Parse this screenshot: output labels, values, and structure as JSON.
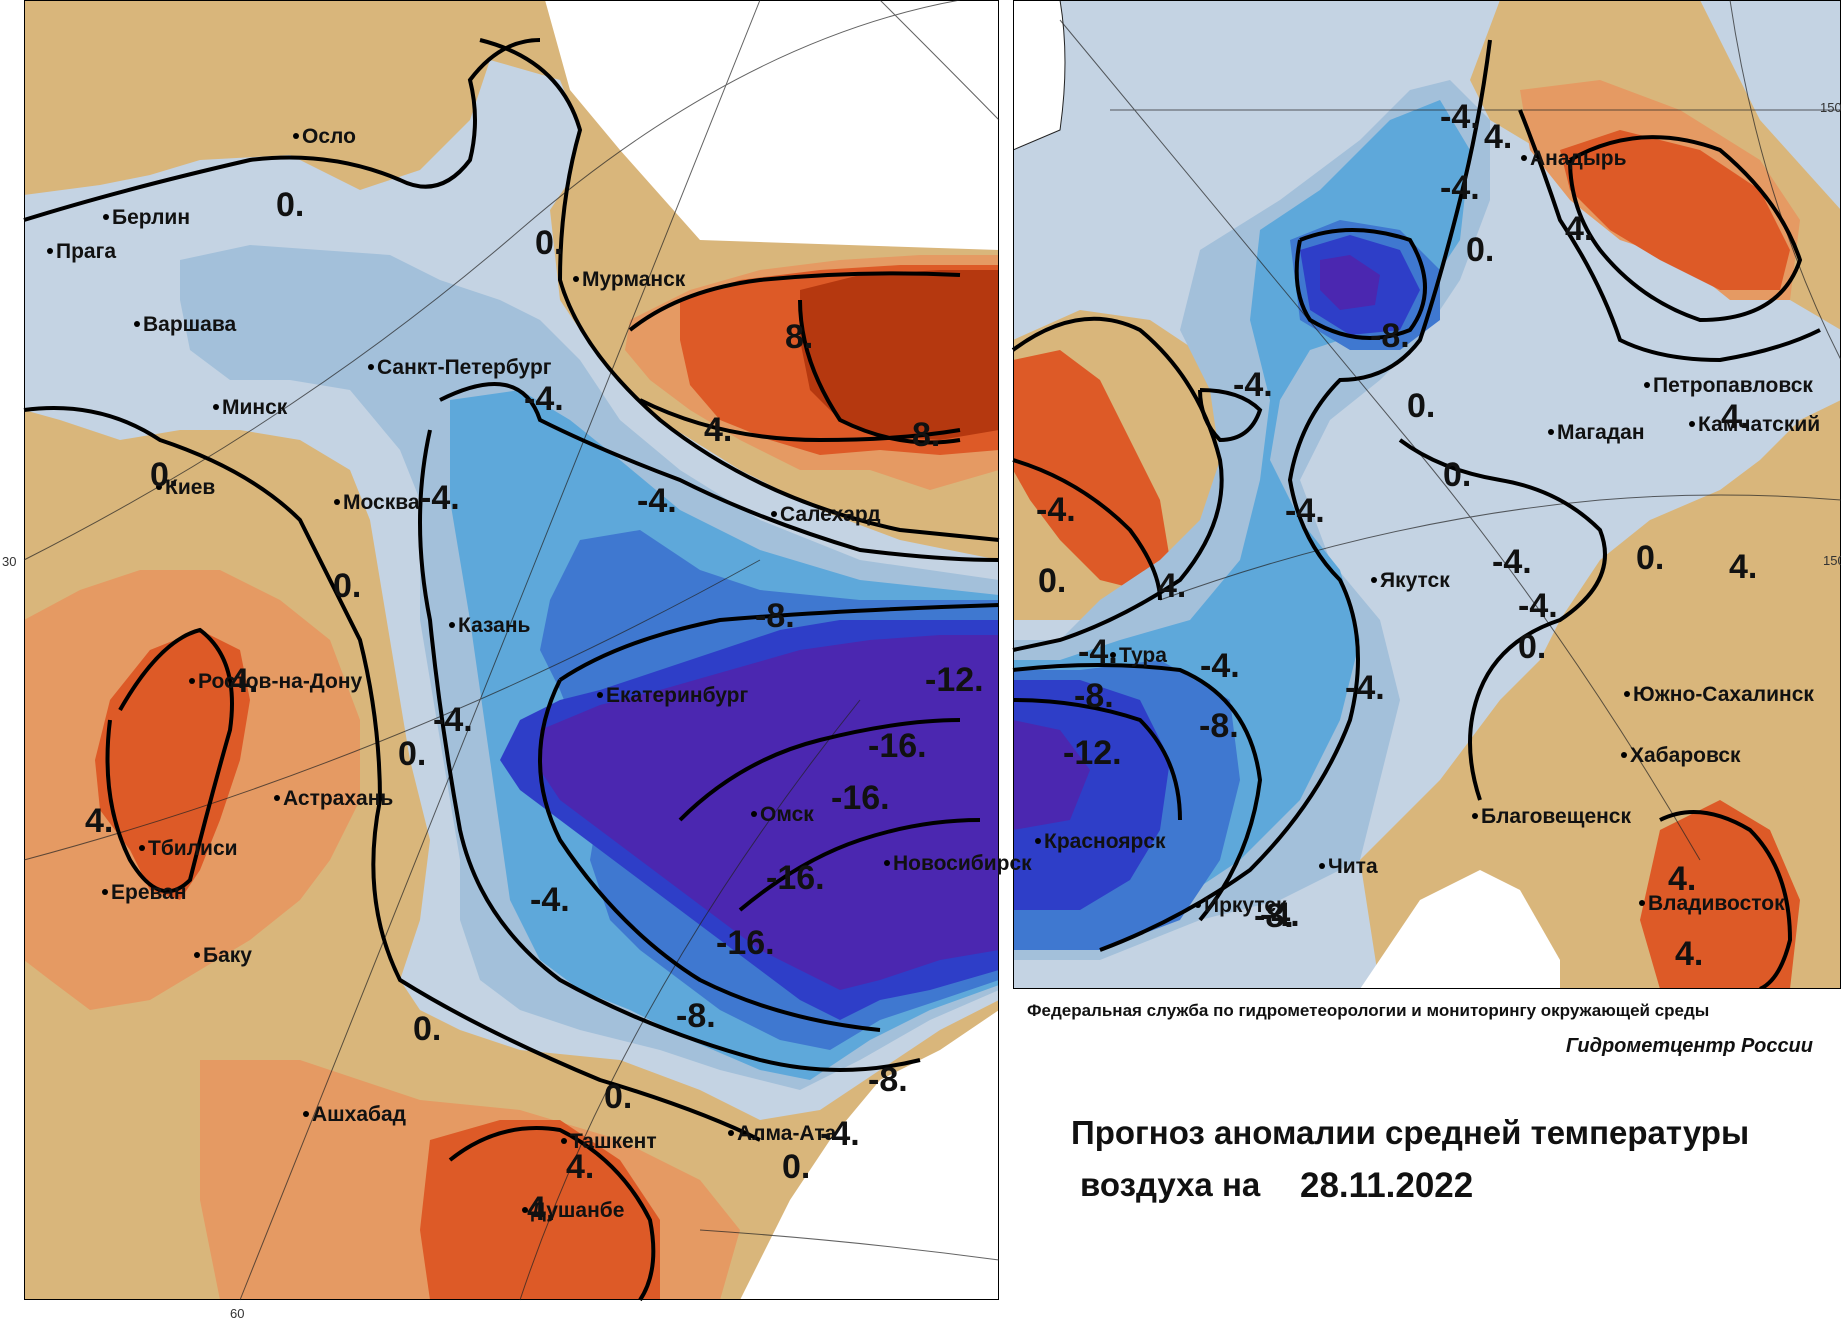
{
  "title": {
    "agency": "Федеральная служба по гидрометеорологии и мониторингу окружающей среды",
    "center": "Гидрометцентр России",
    "line1": "Прогноз аномалии средней температуры",
    "line2": "воздуха на",
    "date": "28.11.2022"
  },
  "legend_colors": {
    "plus8": "#b5380f",
    "plus4": "#dd5a27",
    "plus2": "#e59a63",
    "plus0": "#d9b67b",
    "minus0": "#c4d3e3",
    "minus2": "#a3c0da",
    "minus4": "#5ea8da",
    "minus8": "#3f78d0",
    "minus12": "#2e3ec8",
    "minus16": "#4b27b0"
  },
  "axis_labels": {
    "lat30": "30",
    "lon60": "60",
    "lon150a": "150",
    "lon150b": "150"
  },
  "cities": [
    {
      "id": "oslo",
      "name": "Осло"
    },
    {
      "id": "berlin",
      "name": "Берлин"
    },
    {
      "id": "praga",
      "name": "Прага"
    },
    {
      "id": "varshava",
      "name": "Варшава"
    },
    {
      "id": "minsk",
      "name": "Минск"
    },
    {
      "id": "kiev",
      "name": "Киев"
    },
    {
      "id": "moskva",
      "name": "Москва"
    },
    {
      "id": "spb",
      "name": "Санкт-Петербург"
    },
    {
      "id": "murmansk",
      "name": "Мурманск"
    },
    {
      "id": "salekhard",
      "name": "Салехард"
    },
    {
      "id": "kazan",
      "name": "Казань"
    },
    {
      "id": "rostov",
      "name": "Ростов-на-Дону"
    },
    {
      "id": "astrakhan",
      "name": "Астрахань"
    },
    {
      "id": "tbilisi",
      "name": "Тбилиси"
    },
    {
      "id": "erevan",
      "name": "Ереван"
    },
    {
      "id": "baku",
      "name": "Баку"
    },
    {
      "id": "ekaterinburg",
      "name": "Екатеринбург"
    },
    {
      "id": "omsk",
      "name": "Омск"
    },
    {
      "id": "novosibirsk",
      "name": "Новосибирск"
    },
    {
      "id": "ashkhabad",
      "name": "Ашхабад"
    },
    {
      "id": "tashkent",
      "name": "Ташкент"
    },
    {
      "id": "almaata",
      "name": "Алма-Ата"
    },
    {
      "id": "dushanbe",
      "name": "Душанбе"
    },
    {
      "id": "anadyr",
      "name": "Анадырь"
    },
    {
      "id": "petropavlovsk1",
      "name": "Петропавловск"
    },
    {
      "id": "petropavlovsk2",
      "name": "Камчатский"
    },
    {
      "id": "magadan",
      "name": "Магадан"
    },
    {
      "id": "yakutsk",
      "name": "Якутск"
    },
    {
      "id": "tura",
      "name": "Тура"
    },
    {
      "id": "yuzhno",
      "name": "Южно-Сахалинск"
    },
    {
      "id": "khabarovsk",
      "name": "Хабаровск"
    },
    {
      "id": "blagoveshchensk",
      "name": "Благовещенск"
    },
    {
      "id": "chita",
      "name": "Чита"
    },
    {
      "id": "krasnoyarsk",
      "name": "Красноярск"
    },
    {
      "id": "irkutsk",
      "name": "Иркутск"
    },
    {
      "id": "vladivostok",
      "name": "Владивосток"
    }
  ],
  "isolines": [
    "0.",
    "0.",
    "0.",
    "0.",
    "0.",
    "0.",
    "0.",
    "0.",
    "4.",
    "4.",
    "4.",
    "4.",
    "4.",
    "8.",
    "8.",
    "-4.",
    "-4.",
    "-4.",
    "-4.",
    "-4.",
    "-4.",
    "-8.",
    "-8.",
    "-8.",
    "-12.",
    "-16.",
    "-16.",
    "-16.",
    "-16.",
    "-4.",
    "-4.",
    "-4.",
    "-4.",
    "-4.",
    "-4.",
    "-4.",
    "-4.",
    "-4.",
    "-4.",
    "-8.",
    "-8.",
    "-8.",
    "-8.",
    "-12.",
    "0.",
    "0.",
    "0.",
    "0.",
    "0.",
    "0.",
    "4.",
    "4.",
    "4.",
    "4.",
    "4.",
    "4.",
    "4.",
    "-4."
  ]
}
